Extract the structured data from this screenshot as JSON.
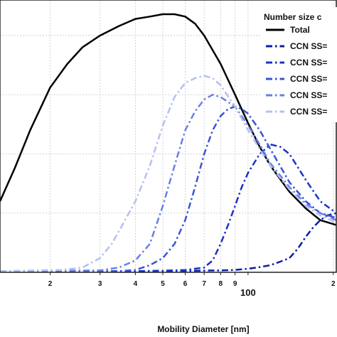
{
  "chart_data": {
    "type": "line",
    "xlabel": "Mobility Diameter [nm]",
    "ylabel": "",
    "xscale": "log",
    "xlim": [
      13.3,
      205
    ],
    "ylim": [
      0,
      1.15
    ],
    "xticks_labeled": [
      {
        "value": 20,
        "label": "2"
      },
      {
        "value": 30,
        "label": "3"
      },
      {
        "value": 40,
        "label": "4"
      },
      {
        "value": 50,
        "label": "5"
      },
      {
        "value": 60,
        "label": "6"
      },
      {
        "value": 70,
        "label": "7"
      },
      {
        "value": 80,
        "label": "8"
      },
      {
        "value": 90,
        "label": "9"
      },
      {
        "value": 100,
        "label": "100"
      },
      {
        "value": 200,
        "label": "2"
      }
    ],
    "grid": true,
    "legend": {
      "title": "Number size c",
      "placement": "top-right",
      "entries": [
        "Total",
        "CCN SS=",
        "CCN SS=",
        "CCN SS=",
        "CCN SS=",
        "CCN SS="
      ]
    },
    "series": [
      {
        "name": "Total",
        "color": "#000000",
        "dash": "solid",
        "x": [
          13.3,
          15,
          17,
          20,
          23,
          26,
          30,
          35,
          40,
          45,
          50,
          55,
          60,
          65,
          70,
          80,
          90,
          100,
          110,
          120,
          140,
          160,
          180,
          205
        ],
        "y": [
          0.3,
          0.44,
          0.6,
          0.78,
          0.88,
          0.95,
          1.0,
          1.04,
          1.07,
          1.08,
          1.09,
          1.09,
          1.08,
          1.05,
          1.0,
          0.88,
          0.75,
          0.63,
          0.53,
          0.45,
          0.34,
          0.27,
          0.22,
          0.2
        ]
      },
      {
        "name": "CCN SS=",
        "color": "#0a1fa0",
        "dash": "dashdot",
        "x": [
          13.3,
          40,
          60,
          80,
          90,
          100,
          110,
          120,
          130,
          140,
          150,
          160,
          170,
          180,
          190,
          205
        ],
        "y": [
          0.005,
          0.005,
          0.006,
          0.008,
          0.01,
          0.015,
          0.022,
          0.03,
          0.045,
          0.06,
          0.1,
          0.15,
          0.19,
          0.22,
          0.24,
          0.25
        ]
      },
      {
        "name": "CCN SS=",
        "color": "#1c34c4",
        "dash": "dashdot",
        "x": [
          13.3,
          40,
          50,
          60,
          70,
          75,
          80,
          85,
          90,
          95,
          100,
          110,
          120,
          130,
          140,
          160,
          180,
          205
        ],
        "y": [
          0.005,
          0.005,
          0.007,
          0.01,
          0.02,
          0.05,
          0.12,
          0.2,
          0.28,
          0.36,
          0.42,
          0.5,
          0.54,
          0.53,
          0.5,
          0.39,
          0.3,
          0.25
        ]
      },
      {
        "name": "CCN SS=",
        "color": "#3a54d8",
        "dash": "dashdot",
        "x": [
          13.3,
          35,
          40,
          45,
          50,
          55,
          60,
          65,
          70,
          75,
          80,
          85,
          90,
          95,
          100,
          110,
          120,
          140,
          160,
          180,
          205
        ],
        "y": [
          0.005,
          0.005,
          0.01,
          0.03,
          0.06,
          0.12,
          0.22,
          0.36,
          0.5,
          0.6,
          0.66,
          0.69,
          0.7,
          0.69,
          0.67,
          0.6,
          0.52,
          0.38,
          0.3,
          0.25,
          0.23
        ]
      },
      {
        "name": "CCN SS=",
        "color": "#6a7ee6",
        "dash": "dashdot",
        "x": [
          13.3,
          30,
          35,
          40,
          45,
          50,
          55,
          60,
          65,
          70,
          75,
          80,
          90,
          100,
          110,
          120,
          140,
          160,
          180,
          205
        ],
        "y": [
          0.005,
          0.008,
          0.02,
          0.05,
          0.12,
          0.28,
          0.45,
          0.6,
          0.68,
          0.73,
          0.75,
          0.74,
          0.7,
          0.62,
          0.54,
          0.46,
          0.36,
          0.29,
          0.25,
          0.22
        ]
      },
      {
        "name": "CCN SS=",
        "color": "#b4c0f0",
        "dash": "dashdot",
        "x": [
          13.3,
          22,
          26,
          30,
          33,
          36,
          40,
          45,
          50,
          55,
          60,
          65,
          70,
          75,
          80,
          90,
          100,
          110,
          120,
          140,
          160,
          180,
          205
        ],
        "y": [
          0.005,
          0.01,
          0.02,
          0.06,
          0.12,
          0.2,
          0.3,
          0.45,
          0.62,
          0.74,
          0.8,
          0.82,
          0.83,
          0.82,
          0.79,
          0.7,
          0.6,
          0.52,
          0.45,
          0.35,
          0.28,
          0.24,
          0.21
        ]
      }
    ]
  }
}
